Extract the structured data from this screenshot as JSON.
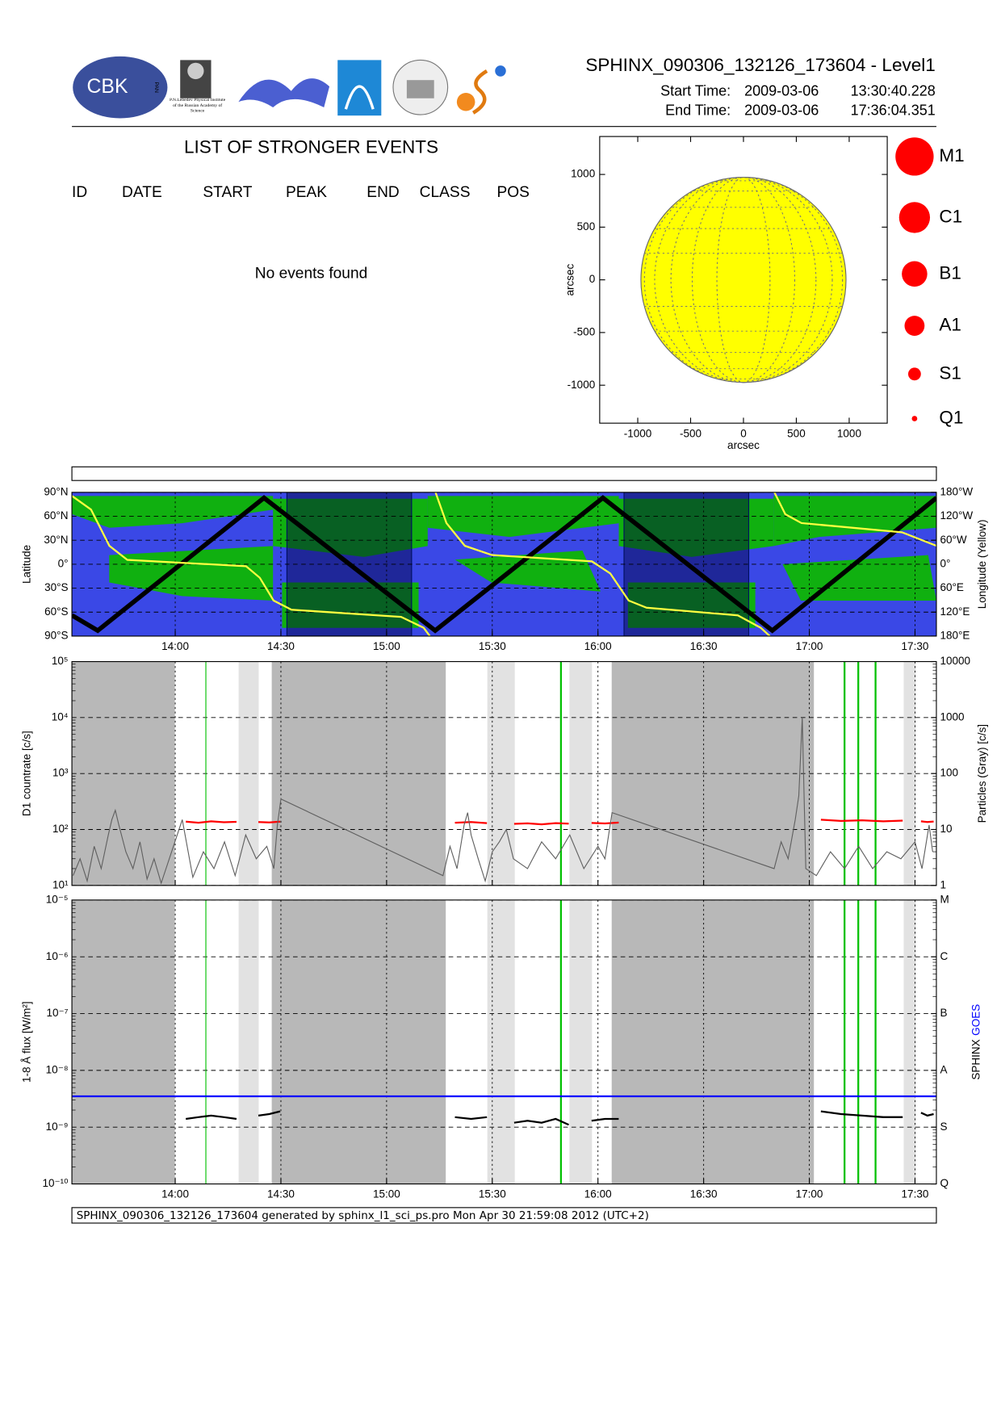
{
  "header": {
    "logos": {
      "cbk": "CBK",
      "pan": "PAN",
      "lebedev": "P.N.Lebedev Physical Institute of the Russian Academy of Science"
    },
    "title": "SPHINX_090306_132126_173604 - Level1",
    "start_label": "Start Time:",
    "start_date": "2009-03-06",
    "start_time": "13:30:40.228",
    "end_label": "End Time:",
    "end_date": "2009-03-06",
    "end_time": "17:36:04.351"
  },
  "events": {
    "title": "LIST OF STRONGER EVENTS",
    "columns": [
      "ID",
      "DATE",
      "START",
      "PEAK",
      "END",
      "CLASS",
      "POS"
    ],
    "message": "No events found"
  },
  "legend": {
    "classes": [
      "M1",
      "C1",
      "B1",
      "A1",
      "S1",
      "Q1"
    ],
    "color": "#ff0000"
  },
  "footer": "SPHINX_090306_132126_173604 generated by sphinx_l1_sci_ps.pro Mon Apr 30 21:59:08 2012 (UTC+2)",
  "chart_data": [
    {
      "type": "disk",
      "xlabel": "arcsec",
      "ylabel": "arcsec",
      "xlim": [
        -1360,
        1360
      ],
      "ylim": [
        -1360,
        1360
      ],
      "xticks": [
        -1000,
        -500,
        0,
        500,
        1000
      ],
      "yticks": [
        -1000,
        -500,
        0,
        500,
        1000
      ],
      "disk_radius": 970,
      "color": "#ffff00"
    },
    {
      "type": "line",
      "ylabel": "Latitude",
      "y2label": "Longitude (Yellow)",
      "xlim": [
        810.67,
        1056.07
      ],
      "xticks": [
        {
          "value": 840,
          "label": "14:00"
        },
        {
          "value": 870,
          "label": "14:30"
        },
        {
          "value": 900,
          "label": "15:00"
        },
        {
          "value": 930,
          "label": "15:30"
        },
        {
          "value": 960,
          "label": "16:00"
        },
        {
          "value": 990,
          "label": "16:30"
        },
        {
          "value": 1020,
          "label": "17:00"
        },
        {
          "value": 1050,
          "label": "17:30"
        }
      ],
      "ylim": [
        -90,
        90
      ],
      "yticks": [
        {
          "value": 90,
          "label": "90°N"
        },
        {
          "value": 60,
          "label": "60°N"
        },
        {
          "value": 30,
          "label": "30°N"
        },
        {
          "value": 0,
          "label": "0°"
        },
        {
          "value": -30,
          "label": "30°S"
        },
        {
          "value": -60,
          "label": "60°S"
        },
        {
          "value": -90,
          "label": "90°S"
        }
      ],
      "y2lim": [
        -180,
        180
      ],
      "y2ticks": [
        {
          "value": 180,
          "label": "180°W"
        },
        {
          "value": 120,
          "label": "120°W"
        },
        {
          "value": 60,
          "label": "60°W"
        },
        {
          "value": 0,
          "label": "0°"
        },
        {
          "value": -60,
          "label": "60°E"
        },
        {
          "value": -120,
          "label": "120°E"
        },
        {
          "value": -180,
          "label": "180°E"
        }
      ],
      "shaded_intervals": [
        [
          871.7,
          907.1
        ],
        [
          967.4,
          1002.8
        ]
      ],
      "series": [
        {
          "color": "#000000",
          "x": [
            810.7,
            818,
            865.2,
            913.8,
            961.4,
            1009.5,
            1056.1
          ],
          "values": [
            -64,
            -83,
            83,
            -83,
            83,
            -83,
            83
          ]
        },
        {
          "color": "#ffff40",
          "axis": "y2",
          "x": [
            810.7,
            816.1,
            821.3,
            826.4,
            860.1,
            864.0,
            867.9,
            873.0,
            904.1,
            910.5,
            912.3,
            913.0,
            913.9,
            917.0,
            922.2,
            929.9,
            958.3,
            963.5,
            968.7,
            973.8,
            999.7,
            1006.2,
            1008.8,
            1009.3,
            1010.1,
            1013.2,
            1017.8,
            1046.3,
            1056.1
          ],
          "values": [
            171,
            137,
            46,
            11,
            -5,
            -34,
            -91,
            -114,
            -132,
            -159,
            -180,
            null,
            180,
            103,
            46,
            23,
            7,
            -23,
            -91,
            -109,
            -128,
            -159,
            -180,
            null,
            180,
            125,
            103,
            80,
            46
          ]
        }
      ]
    },
    {
      "type": "line",
      "ylabel": "D1 countrate [c/s]",
      "y2label": "Particles (Gray) [c/s]",
      "log": true,
      "xlim": [
        810.67,
        1056.07
      ],
      "xticks": [
        840,
        870,
        900,
        930,
        960,
        990,
        1020,
        1050
      ],
      "ylim": [
        10,
        100000
      ],
      "yticks": [
        {
          "value": 10,
          "label": "10¹"
        },
        {
          "value": 100,
          "label": "10²"
        },
        {
          "value": 1000,
          "label": "10³"
        },
        {
          "value": 10000,
          "label": "10⁴"
        },
        {
          "value": 100000,
          "label": "10⁵"
        }
      ],
      "y2lim": [
        1,
        10000
      ],
      "y2ticks": [
        1,
        10,
        100,
        1000,
        10000
      ],
      "dark_intervals": [
        [
          810.67,
          839.9
        ],
        [
          867.4,
          916.8
        ],
        [
          963.9,
          1021.3
        ]
      ],
      "light_intervals": [
        [
          858.0,
          863.7
        ],
        [
          928.6,
          936.4
        ],
        [
          951.9,
          958.3
        ],
        [
          1046.8,
          1050.2
        ]
      ],
      "event_lines": [
        848.7,
        949.5,
        1030.0,
        1033.9,
        1038.8
      ],
      "event_color": "#00c000",
      "series": [
        {
          "color": "#ff0000",
          "x": [
            843,
            846.6,
            850.2,
            853.8,
            857.4,
            860,
            863.6,
            866.7,
            869.8,
            894,
            919.4,
            924,
            928.5,
            932,
            936.2,
            940,
            944,
            948,
            951.7,
            955,
            958.2,
            962,
            965.9,
            995,
            1023.3,
            1029,
            1035,
            1041,
            1046.5,
            1049,
            1051.7,
            1053.5,
            1055.3
          ],
          "values": [
            138,
            132,
            140,
            135,
            137,
            null,
            136,
            134,
            138,
            null,
            132,
            136,
            130,
            null,
            126,
            129,
            124,
            130,
            127,
            null,
            131,
            128,
            133,
            null,
            150,
            142,
            146,
            140,
            144,
            null,
            140,
            136,
            139
          ]
        },
        {
          "color": "#606060",
          "axis": "y2",
          "x": [
            811,
            813,
            815,
            817,
            819,
            821,
            822,
            823,
            824,
            826,
            828,
            830,
            832,
            834,
            836,
            842,
            845,
            848,
            851,
            854,
            857,
            860,
            863,
            866,
            868,
            869,
            870,
            916,
            918,
            920,
            922,
            923,
            924,
            926,
            928,
            930,
            932,
            934,
            936,
            940,
            944,
            948,
            952,
            956,
            960,
            962,
            964,
            1010,
            1012,
            1014,
            1016,
            1017,
            1018,
            1019,
            1022,
            1026,
            1030,
            1034,
            1038,
            1042,
            1046,
            1050,
            1052,
            1054,
            1055
          ],
          "values": [
            1.5,
            3,
            1.2,
            5,
            2,
            8,
            15,
            22,
            12,
            4,
            2,
            6,
            1.3,
            3,
            1.1,
            15,
            1.4,
            4,
            2,
            6,
            1.5,
            8,
            3,
            5,
            2,
            12,
            35,
            1.5,
            5,
            2,
            12,
            20,
            8,
            3,
            1.2,
            4,
            6,
            10,
            3,
            2,
            6,
            3,
            8,
            2,
            5,
            3,
            20,
            2,
            6,
            3,
            15,
            40,
            1000,
            2,
            1.5,
            4,
            2,
            5,
            2,
            4,
            3,
            6,
            2,
            12,
            4
          ]
        }
      ]
    },
    {
      "type": "line",
      "ylabel": "1-8 Å flux [W/m²]",
      "log": true,
      "xlim": [
        810.67,
        1056.07
      ],
      "xticks": [
        {
          "value": 840,
          "label": "14:00"
        },
        {
          "value": 870,
          "label": "14:30"
        },
        {
          "value": 900,
          "label": "15:00"
        },
        {
          "value": 930,
          "label": "15:30"
        },
        {
          "value": 960,
          "label": "16:00"
        },
        {
          "value": 990,
          "label": "16:30"
        },
        {
          "value": 1020,
          "label": "17:00"
        },
        {
          "value": 1050,
          "label": "17:30"
        }
      ],
      "ylim": [
        1e-10,
        1e-05
      ],
      "yticks": [
        {
          "value": 1e-10,
          "label": "10⁻¹⁰"
        },
        {
          "value": 1e-09,
          "label": "10⁻⁹"
        },
        {
          "value": 1e-08,
          "label": "10⁻⁸"
        },
        {
          "value": 1e-07,
          "label": "10⁻⁷"
        },
        {
          "value": 1e-06,
          "label": "10⁻⁶"
        },
        {
          "value": 1e-05,
          "label": "10⁻⁵"
        }
      ],
      "class_ticks": [
        {
          "value": 1e-10,
          "label": "Q"
        },
        {
          "value": 1e-09,
          "label": "S"
        },
        {
          "value": 1e-08,
          "label": "A"
        },
        {
          "value": 1e-07,
          "label": "B"
        },
        {
          "value": 1e-06,
          "label": "C"
        },
        {
          "value": 1e-05,
          "label": "M"
        }
      ],
      "dark_intervals": [
        [
          810.67,
          839.9
        ],
        [
          867.4,
          916.8
        ],
        [
          963.9,
          1021.3
        ]
      ],
      "light_intervals": [
        [
          858.0,
          863.7
        ],
        [
          928.6,
          936.4
        ],
        [
          951.9,
          958.3
        ],
        [
          1046.8,
          1050.2
        ]
      ],
      "event_lines": [
        848.7,
        949.5,
        1030.0,
        1033.9,
        1038.8
      ],
      "event_color": "#00c000",
      "series": [
        {
          "name": "SPHINX",
          "color": "#000000",
          "x": [
            843,
            846.6,
            850.2,
            853.8,
            857.4,
            860,
            863.6,
            866.7,
            869.8,
            894,
            919.4,
            924,
            928.5,
            932,
            936.2,
            940,
            944,
            948,
            951.7,
            955,
            958.2,
            962,
            965.9,
            995,
            1023.3,
            1029,
            1035,
            1041,
            1046.5,
            1049,
            1051.7,
            1053.5,
            1055.3
          ],
          "values": [
            1.4e-09,
            1.5e-09,
            1.6e-09,
            1.5e-09,
            1.4e-09,
            null,
            1.6e-09,
            1.7e-09,
            1.9e-09,
            null,
            1.5e-09,
            1.4e-09,
            1.5e-09,
            null,
            1.2e-09,
            1.3e-09,
            1.2e-09,
            1.4e-09,
            1.1e-09,
            null,
            1.3e-09,
            1.4e-09,
            1.4e-09,
            null,
            1.9e-09,
            1.7e-09,
            1.6e-09,
            1.5e-09,
            1.5e-09,
            null,
            1.8e-09,
            1.6e-09,
            1.7e-09
          ]
        },
        {
          "name": "GOES",
          "color": "#0000ff",
          "x": [
            810.67,
            1056.07
          ],
          "values": [
            3.5e-09,
            3.5e-09
          ]
        }
      ]
    }
  ]
}
